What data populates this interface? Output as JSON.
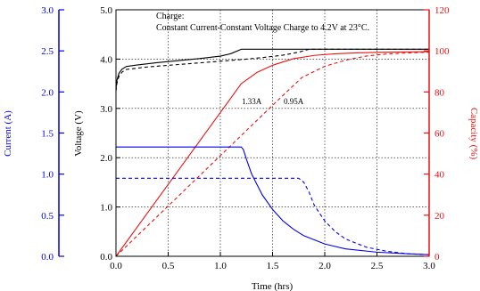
{
  "chart_data": {
    "type": "line",
    "annotation": {
      "line1": "Charge:",
      "line2": "Constant Current-Constant Voltage Charge to 4.2V at 23°C."
    },
    "xlabel": "Time (hrs)",
    "xlim": [
      0,
      3
    ],
    "xticks": [
      "0.0",
      "0.5",
      "1.0",
      "1.5",
      "2.0",
      "2.5",
      "3.0"
    ],
    "grid": true,
    "axes": {
      "current": {
        "label": "Current (A)",
        "lim": [
          0,
          3
        ],
        "ticks": [
          "0.0",
          "0.5",
          "1.0",
          "1.5",
          "2.0",
          "2.5",
          "3.0"
        ],
        "color": "#0000ee"
      },
      "voltage": {
        "label": "Voltage (V)",
        "lim": [
          0,
          5
        ],
        "ticks": [
          "0.0",
          "1.0",
          "2.0",
          "3.0",
          "4.0",
          "5.0"
        ],
        "color": "#000000"
      },
      "capacity": {
        "label": "Capacity (%)",
        "lim": [
          0,
          120
        ],
        "ticks": [
          "0",
          "20",
          "40",
          "60",
          "80",
          "100",
          "120"
        ],
        "color": "#ee1111"
      }
    },
    "series_labels": {
      "high": "1.33A",
      "low": "0.95A"
    },
    "series": [
      {
        "axis": "voltage",
        "color": "#000000",
        "dash": false,
        "x": [
          0,
          0.01,
          0.03,
          0.06,
          0.1,
          0.2,
          0.4,
          0.6,
          0.8,
          1.0,
          1.1,
          1.2,
          1.3,
          1.5,
          1.75,
          2.0,
          2.5,
          3.0
        ],
        "y": [
          3.4,
          3.58,
          3.72,
          3.8,
          3.85,
          3.88,
          3.93,
          3.97,
          4.01,
          4.06,
          4.11,
          4.2,
          4.2,
          4.2,
          4.2,
          4.2,
          4.2,
          4.2
        ]
      },
      {
        "axis": "voltage",
        "color": "#000000",
        "dash": true,
        "x": [
          0,
          0.01,
          0.03,
          0.06,
          0.1,
          0.3,
          0.6,
          0.9,
          1.2,
          1.4,
          1.6,
          1.75,
          1.85,
          2.0,
          2.5,
          3.0
        ],
        "y": [
          3.35,
          3.52,
          3.66,
          3.74,
          3.79,
          3.84,
          3.89,
          3.94,
          3.99,
          4.03,
          4.08,
          4.14,
          4.2,
          4.2,
          4.2,
          4.2
        ]
      },
      {
        "axis": "capacity",
        "color": "#ee1111",
        "dash": false,
        "x": [
          0,
          0.3,
          0.6,
          0.9,
          1.2,
          1.35,
          1.5,
          1.7,
          1.9,
          2.1,
          2.3,
          2.6,
          3.0
        ],
        "y": [
          0,
          21,
          42,
          63,
          84,
          89.5,
          93,
          96.2,
          97.8,
          98.6,
          99,
          99.4,
          99.6
        ]
      },
      {
        "axis": "capacity",
        "color": "#ee1111",
        "dash": true,
        "x": [
          0,
          0.5,
          1.0,
          1.5,
          1.78,
          1.9,
          2.0,
          2.2,
          2.4,
          2.6,
          2.8,
          3.0
        ],
        "y": [
          0,
          24.5,
          49,
          73.5,
          87,
          90,
          92.5,
          95.5,
          97.5,
          98.5,
          99,
          99.4
        ]
      },
      {
        "axis": "current",
        "color": "#0000ee",
        "dash": false,
        "x": [
          0,
          1.2,
          1.22,
          1.25,
          1.3,
          1.4,
          1.5,
          1.6,
          1.7,
          1.8,
          2.0,
          2.2,
          2.5,
          2.8,
          3.0
        ],
        "y": [
          1.33,
          1.33,
          1.3,
          1.18,
          1.0,
          0.75,
          0.57,
          0.43,
          0.33,
          0.25,
          0.15,
          0.09,
          0.05,
          0.03,
          0.02
        ]
      },
      {
        "axis": "current",
        "color": "#0000ee",
        "dash": true,
        "x": [
          0,
          1.75,
          1.8,
          1.85,
          1.9,
          2.0,
          2.1,
          2.2,
          2.4,
          2.6,
          2.8,
          3.0
        ],
        "y": [
          0.95,
          0.95,
          0.9,
          0.78,
          0.62,
          0.43,
          0.3,
          0.21,
          0.11,
          0.06,
          0.03,
          0.02
        ]
      }
    ]
  }
}
